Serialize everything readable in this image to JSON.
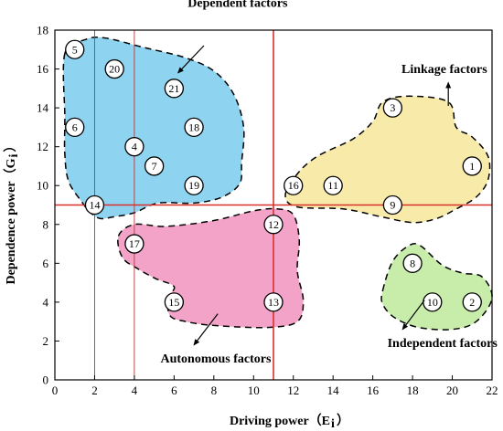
{
  "chart_data": {
    "type": "scatter",
    "xlabel": "Driving power（E",
    "xlabel_sub": "i",
    "xlabel_close": "）",
    "ylabel": "Dependence power（G",
    "ylabel_sub": "i",
    "ylabel_close": "）",
    "xlim": [
      0,
      22
    ],
    "ylim": [
      0,
      18
    ],
    "x_ticks": [
      "0",
      "2",
      "4",
      "6",
      "8",
      "10",
      "12",
      "14",
      "16",
      "18",
      "20",
      "22"
    ],
    "y_ticks": [
      "0",
      "2",
      "4",
      "6",
      "8",
      "10",
      "12",
      "14",
      "16",
      "18"
    ],
    "grid": false,
    "divider_lines": {
      "x": 11,
      "y": 9,
      "color": "#d9302c"
    },
    "thin_vertical_lines": [
      2,
      4
    ],
    "thin_line_color": "#b23a3a",
    "points": [
      {
        "id": "1",
        "x": 21,
        "y": 11
      },
      {
        "id": "2",
        "x": 21,
        "y": 4
      },
      {
        "id": "3",
        "x": 17,
        "y": 14
      },
      {
        "id": "4",
        "x": 4,
        "y": 12
      },
      {
        "id": "5",
        "x": 1,
        "y": 17
      },
      {
        "id": "6",
        "x": 1,
        "y": 13
      },
      {
        "id": "7",
        "x": 5,
        "y": 11
      },
      {
        "id": "8",
        "x": 18,
        "y": 6
      },
      {
        "id": "9",
        "x": 17,
        "y": 9
      },
      {
        "id": "10",
        "x": 19,
        "y": 4
      },
      {
        "id": "11",
        "x": 14,
        "y": 10
      },
      {
        "id": "12",
        "x": 11,
        "y": 8
      },
      {
        "id": "13",
        "x": 11,
        "y": 4
      },
      {
        "id": "14",
        "x": 2,
        "y": 9
      },
      {
        "id": "15",
        "x": 6,
        "y": 4
      },
      {
        "id": "16",
        "x": 12,
        "y": 10
      },
      {
        "id": "17",
        "x": 4,
        "y": 7
      },
      {
        "id": "18",
        "x": 7,
        "y": 13
      },
      {
        "id": "19",
        "x": 7,
        "y": 10
      },
      {
        "id": "20",
        "x": 3,
        "y": 16
      },
      {
        "id": "21",
        "x": 6,
        "y": 15
      }
    ],
    "regions": [
      {
        "name": "Dependent factors",
        "color": "#8ed3ef",
        "outline": [
          [
            0.5,
            16.8
          ],
          [
            1.5,
            17.5
          ],
          [
            2.5,
            17.6
          ],
          [
            4.5,
            17.1
          ],
          [
            6.5,
            16.6
          ],
          [
            8,
            15.9
          ],
          [
            9,
            14.7
          ],
          [
            9.5,
            13
          ],
          [
            9.4,
            11.2
          ],
          [
            9.3,
            10.1
          ],
          [
            8.4,
            9.4
          ],
          [
            7,
            9.1
          ],
          [
            5.2,
            9.1
          ],
          [
            4,
            8.6
          ],
          [
            3,
            8.4
          ],
          [
            2.3,
            8.3
          ],
          [
            1.8,
            8.6
          ],
          [
            1.4,
            9.1
          ],
          [
            0.7,
            10.2
          ],
          [
            0.5,
            11.6
          ],
          [
            0.5,
            13.5
          ],
          [
            0.5,
            16.8
          ]
        ],
        "label_pos": [
          9.2,
          19.2
        ],
        "arrow": {
          "from": [
            7.5,
            17.2
          ],
          "to": [
            6.2,
            15.8
          ]
        }
      },
      {
        "name": "Linkage factors",
        "color": "#f8eaa8",
        "outline": [
          [
            11.6,
            9.5
          ],
          [
            12.2,
            10.6
          ],
          [
            13.2,
            11.5
          ],
          [
            15,
            12.4
          ],
          [
            16,
            13.3
          ],
          [
            16.5,
            14.3
          ],
          [
            17.8,
            14.6
          ],
          [
            19.8,
            14.3
          ],
          [
            20.2,
            13
          ],
          [
            21,
            12.5
          ],
          [
            21.8,
            11.5
          ],
          [
            21.8,
            10.3
          ],
          [
            21.2,
            9.4
          ],
          [
            20.2,
            8.8
          ],
          [
            19.2,
            8.3
          ],
          [
            18,
            8.1
          ],
          [
            16.4,
            8.4
          ],
          [
            14.5,
            8.8
          ],
          [
            12.2,
            8.9
          ],
          [
            11.6,
            9.5
          ]
        ],
        "label_pos": [
          19.6,
          15.8
        ],
        "arrow": {
          "from": [
            19.8,
            14.1
          ],
          "to": [
            19.8,
            15.3
          ]
        }
      },
      {
        "name": "Autonomous factors",
        "color": "#f3a3c8",
        "outline": [
          [
            3.2,
            7.4
          ],
          [
            4,
            8
          ],
          [
            5.6,
            7.9
          ],
          [
            8,
            8.2
          ],
          [
            10,
            8.7
          ],
          [
            11.2,
            8.8
          ],
          [
            12,
            8.5
          ],
          [
            12.3,
            7.2
          ],
          [
            12.2,
            5.6
          ],
          [
            12.5,
            4.1
          ],
          [
            12.2,
            3
          ],
          [
            10.7,
            2.7
          ],
          [
            8,
            2.8
          ],
          [
            6.6,
            3
          ],
          [
            5.8,
            3.3
          ],
          [
            5.7,
            4.2
          ],
          [
            6,
            4.8
          ],
          [
            5.1,
            5.2
          ],
          [
            4.2,
            5.7
          ],
          [
            3.4,
            6.3
          ],
          [
            3.2,
            7.4
          ]
        ],
        "label_pos": [
          8.1,
          0.9
        ],
        "arrow": {
          "from": [
            8.2,
            3.4
          ],
          "to": [
            7,
            1.8
          ]
        }
      },
      {
        "name": "Independent factors",
        "color": "#c8edab",
        "outline": [
          [
            16.5,
            4.6
          ],
          [
            17,
            6.1
          ],
          [
            17.8,
            6.9
          ],
          [
            18.4,
            6.9
          ],
          [
            19.5,
            5.9
          ],
          [
            20.5,
            5.5
          ],
          [
            21.5,
            5.3
          ],
          [
            22,
            4.2
          ],
          [
            21.2,
            3
          ],
          [
            20,
            2.6
          ],
          [
            18.3,
            2.7
          ],
          [
            17.1,
            3.2
          ],
          [
            16.5,
            3.9
          ],
          [
            16.5,
            4.6
          ]
        ],
        "label_pos": [
          19.5,
          1.7
        ],
        "arrow": {
          "from": [
            18.6,
            4.1
          ],
          "to": [
            17.5,
            2.6
          ]
        }
      }
    ]
  }
}
